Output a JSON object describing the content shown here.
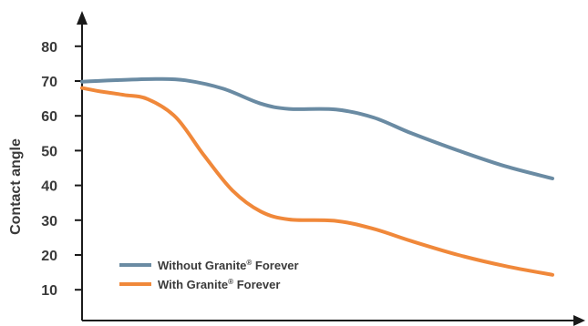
{
  "chart_data": {
    "type": "line",
    "title": "",
    "xlabel": "",
    "ylabel": "Contact angle",
    "ylim": [
      0,
      90
    ],
    "xlim": [
      0,
      10
    ],
    "y_ticks": [
      10,
      20,
      30,
      40,
      50,
      60,
      70,
      80
    ],
    "grid": false,
    "legend_position": "bottom-left",
    "series": [
      {
        "name": "Without Granite® Forever",
        "name_main": "Without Granite",
        "name_mark": "®",
        "name_tail": " Forever",
        "color": "#6a8ba3",
        "x": [
          0,
          0.8,
          1.6,
          2.2,
          3.0,
          3.8,
          4.4,
          5.4,
          6.2,
          7.0,
          8.0,
          9.0,
          10.0
        ],
        "y": [
          69.8,
          70.3,
          70.6,
          70.2,
          67.8,
          63.5,
          62.0,
          61.8,
          59.5,
          55.0,
          50.0,
          45.5,
          42.0
        ]
      },
      {
        "name": "With Granite® Forever",
        "name_main": "With Granite",
        "name_mark": "®",
        "name_tail": " Forever",
        "color": "#f0883a",
        "x": [
          0,
          0.4,
          0.9,
          1.4,
          2.0,
          2.6,
          3.2,
          3.8,
          4.4,
          5.4,
          6.2,
          7.0,
          8.0,
          9.0,
          10.0
        ],
        "y": [
          68.0,
          67.0,
          66.0,
          64.8,
          59.5,
          48.5,
          38.5,
          32.5,
          30.2,
          29.8,
          27.5,
          24.0,
          20.0,
          16.8,
          14.3
        ]
      }
    ]
  }
}
